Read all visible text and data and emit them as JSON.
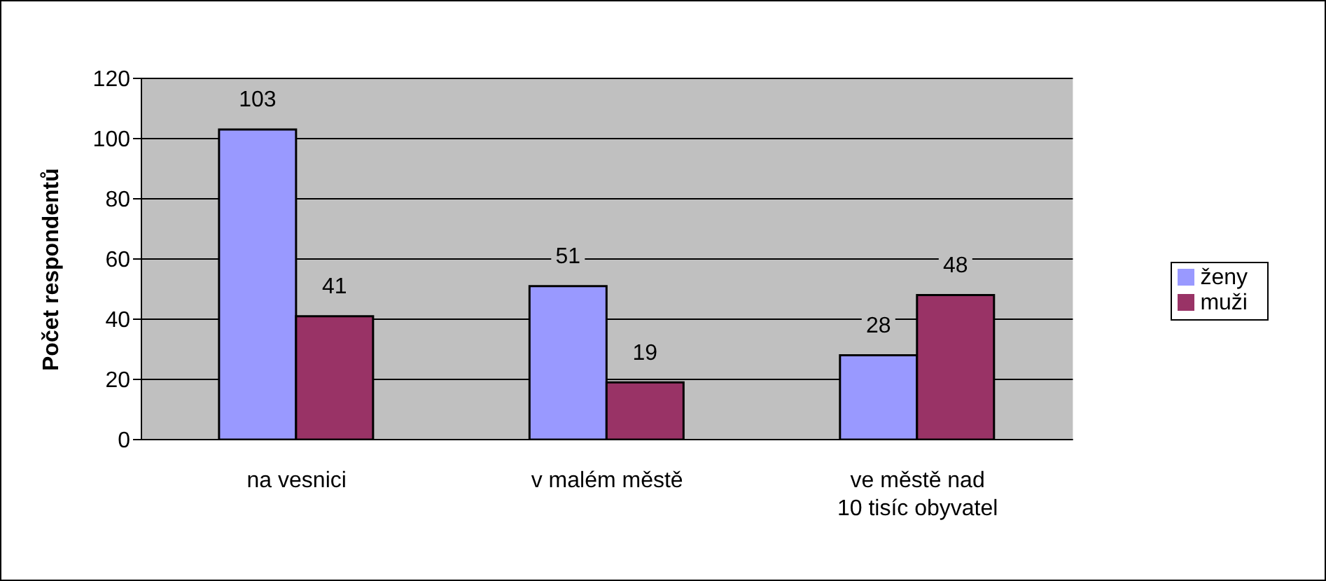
{
  "chart_data": {
    "type": "bar",
    "ylabel": "Počet respondentů",
    "categories": [
      "na vesnici",
      "v malém městě",
      "ve městě nad 10 tisíc obyvatel"
    ],
    "series": [
      {
        "name": "ženy",
        "color": "#9999ff",
        "values": [
          103,
          51,
          28
        ]
      },
      {
        "name": "muži",
        "color": "#993366",
        "values": [
          41,
          19,
          48
        ]
      }
    ],
    "ylim": [
      0,
      120
    ],
    "yticks": [
      0,
      20,
      40,
      60,
      80,
      100,
      120
    ],
    "grid": "y",
    "legend": "right",
    "data_labels": true
  }
}
